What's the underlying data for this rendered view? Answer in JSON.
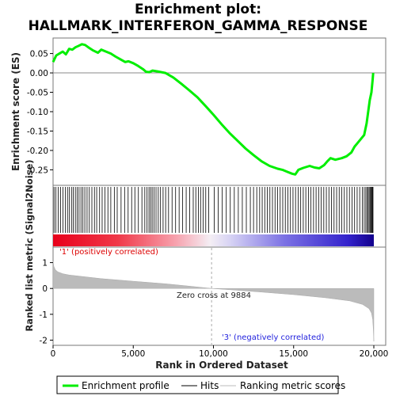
{
  "title_line1": "Enrichment plot:",
  "title_line2": "HALLMARK_INTERFERON_GAMMA_RESPONSE",
  "chart_data": {
    "type": "line",
    "x_range": [
      0,
      20000
    ],
    "es_panel": {
      "ylabel": "Enrichment score (ES)",
      "ylim": [
        -0.29,
        0.09
      ],
      "yticks": [
        0.05,
        0.0,
        -0.05,
        -0.1,
        -0.15,
        -0.2,
        -0.25
      ],
      "ytick_labels": [
        "0.05",
        "0.00",
        "-0.05",
        "-0.10",
        "-0.15",
        "-0.20",
        "-0.25"
      ],
      "grid": false,
      "series": [
        {
          "name": "Enrichment profile",
          "color": "#00ee00",
          "x": [
            0,
            200,
            400,
            600,
            800,
            1000,
            1200,
            1400,
            1600,
            1800,
            2000,
            2200,
            2500,
            2800,
            3000,
            3300,
            3600,
            3900,
            4200,
            4500,
            4700,
            5000,
            5300,
            5600,
            5800,
            6000,
            6200,
            6500,
            7000,
            7500,
            8000,
            8500,
            9000,
            9500,
            10000,
            10500,
            11000,
            11500,
            12000,
            12500,
            13000,
            13500,
            14000,
            14300,
            14600,
            14900,
            15100,
            15300,
            15600,
            16000,
            16300,
            16600,
            16900,
            17100,
            17300,
            17600,
            18000,
            18300,
            18600,
            18800,
            19000,
            19200,
            19400,
            19550,
            19650,
            19750,
            19850,
            19920,
            19960
          ],
          "y": [
            0.028,
            0.045,
            0.05,
            0.055,
            0.048,
            0.062,
            0.06,
            0.066,
            0.07,
            0.074,
            0.072,
            0.066,
            0.058,
            0.052,
            0.06,
            0.055,
            0.05,
            0.042,
            0.035,
            0.028,
            0.03,
            0.025,
            0.018,
            0.01,
            0.003,
            0.002,
            0.006,
            0.004,
            0.0,
            -0.012,
            -0.028,
            -0.045,
            -0.063,
            -0.085,
            -0.108,
            -0.132,
            -0.155,
            -0.175,
            -0.195,
            -0.212,
            -0.228,
            -0.24,
            -0.247,
            -0.25,
            -0.255,
            -0.26,
            -0.262,
            -0.25,
            -0.245,
            -0.24,
            -0.244,
            -0.246,
            -0.238,
            -0.228,
            -0.22,
            -0.224,
            -0.22,
            -0.215,
            -0.205,
            -0.19,
            -0.18,
            -0.17,
            -0.16,
            -0.13,
            -0.1,
            -0.07,
            -0.05,
            -0.02,
            0.0
          ]
        }
      ]
    },
    "hits": {
      "name": "Hits",
      "positions": [
        60,
        180,
        320,
        470,
        620,
        760,
        900,
        1020,
        1150,
        1260,
        1390,
        1500,
        1620,
        1740,
        1860,
        1980,
        2120,
        2260,
        2420,
        2580,
        2720,
        2900,
        3060,
        3240,
        3420,
        3600,
        3820,
        4000,
        4240,
        4460,
        4680,
        4900,
        5100,
        5320,
        5540,
        5720,
        5860,
        5980,
        6080,
        6180,
        6300,
        6420,
        6560,
        6700,
        6860,
        7020,
        7200,
        7420,
        7640,
        7860,
        8080,
        8300,
        8520,
        8740,
        8900,
        9060,
        9200,
        9360,
        9520,
        9700,
        10050,
        10300,
        10550,
        10800,
        11050,
        11300,
        11550,
        11800,
        12050,
        12300,
        12500,
        12700,
        12880,
        13040,
        13200,
        13360,
        13520,
        13680,
        13840,
        14000,
        14160,
        14320,
        14480,
        14640,
        14800,
        14960,
        15120,
        15280,
        15440,
        15600,
        15760,
        15920,
        16080,
        16240,
        16400,
        16560,
        16720,
        16880,
        17040,
        17200,
        17360,
        17520,
        17680,
        17840,
        18000,
        18160,
        18320,
        18480,
        18640,
        18800,
        18960,
        19120,
        19280,
        19400,
        19500,
        19580,
        19650,
        19710,
        19770,
        19820,
        19870,
        19910,
        19950
      ]
    },
    "rank_panel": {
      "ylabel": "Ranked list metric (Signal2Noise)",
      "ylim": [
        -2.2,
        1.6
      ],
      "yticks": [
        1,
        0,
        -1,
        -2
      ],
      "ytick_labels": [
        "1",
        "0",
        "-1",
        "-2"
      ],
      "series_name": "Ranking metric scores",
      "color": "#bbbbbb",
      "x": [
        0,
        50,
        150,
        300,
        600,
        1000,
        2000,
        3000,
        5000,
        7000,
        8500,
        9884,
        11000,
        13000,
        15000,
        17000,
        18500,
        19300,
        19700,
        19850,
        19930,
        19970,
        20000
      ],
      "y": [
        1.05,
        0.85,
        0.72,
        0.64,
        0.57,
        0.52,
        0.45,
        0.38,
        0.28,
        0.18,
        0.09,
        0.0,
        -0.05,
        -0.14,
        -0.24,
        -0.36,
        -0.48,
        -0.62,
        -0.78,
        -0.95,
        -1.2,
        -1.6,
        -2.05
      ],
      "zero_cross_label": "Zero cross at 9884",
      "zero_cross_x": 9884,
      "pos_label": "'1' (positively correlated)",
      "neg_label": "'3' (negatively correlated)"
    },
    "x_axis": {
      "xlabel": "Rank in Ordered Dataset",
      "xticks": [
        0,
        5000,
        10000,
        15000,
        20000
      ],
      "xtick_labels": [
        "0",
        "5,000",
        "10,000",
        "15,000",
        "20,000"
      ]
    },
    "legend": {
      "placement": "bottom",
      "entries": [
        {
          "label": "Enrichment profile",
          "color": "#00ee00",
          "style": "line"
        },
        {
          "label": "Hits",
          "color": "#000000",
          "style": "line"
        },
        {
          "label": "Ranking metric scores",
          "color": "#bbbbbb",
          "style": "line"
        }
      ]
    }
  }
}
